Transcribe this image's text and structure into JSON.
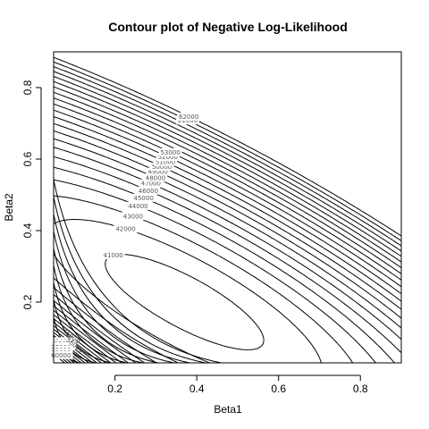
{
  "chart_data": {
    "type": "contour",
    "title": "Contour plot of Negative Log-Likelihood",
    "xlabel": "Beta1",
    "ylabel": "Beta2",
    "xlim": [
      0.05,
      0.9
    ],
    "ylim": [
      0.03,
      0.9
    ],
    "x_ticks": [
      0.2,
      0.4,
      0.6,
      0.8
    ],
    "x_tick_labels": [
      "0.2",
      "0.4",
      "0.6",
      "0.8"
    ],
    "y_ticks": [
      0.2,
      0.4,
      0.6,
      0.8
    ],
    "y_tick_labels": [
      "0.2",
      "0.4",
      "0.6",
      "0.8"
    ],
    "minimum": {
      "beta1": 0.37,
      "beta2": 0.2
    },
    "levels": [
      41000,
      42000,
      43000,
      44000,
      45000,
      46000,
      47000,
      48000,
      49000,
      50000,
      51000,
      52000,
      53000,
      54000,
      55000,
      56000,
      57000,
      58000,
      59000,
      60000,
      61000,
      62000
    ],
    "labeled_levels": [
      {
        "value": 41000,
        "text": "41000"
      },
      {
        "value": 42000,
        "text": "42000"
      },
      {
        "value": 43000,
        "text": "43000"
      },
      {
        "value": 44000,
        "text": "44000"
      },
      {
        "value": 45000,
        "text": "45000"
      },
      {
        "value": 46000,
        "text": "46000"
      },
      {
        "value": 47000,
        "text": "47000"
      },
      {
        "value": 48000,
        "text": "48000"
      },
      {
        "value": 49000,
        "text": "49000"
      },
      {
        "value": 50000,
        "text": "50000"
      },
      {
        "value": 51000,
        "text": "51000"
      },
      {
        "value": 52000,
        "text": "52000"
      },
      {
        "value": 53000,
        "text": "53000"
      },
      {
        "value": 54000,
        "text": "54000"
      },
      {
        "value": 55000,
        "text": "55000"
      },
      {
        "value": 56000,
        "text": "56000"
      },
      {
        "value": 57000,
        "text": "57000"
      },
      {
        "value": 58000,
        "text": "58000"
      },
      {
        "value": 59000,
        "text": "59000"
      },
      {
        "value": 60000,
        "text": "60000"
      },
      {
        "value": 61000,
        "text": "61000"
      },
      {
        "value": 62000,
        "text": "62000"
      }
    ],
    "corner_labels": [
      {
        "text": "46000"
      },
      {
        "text": "56000"
      }
    ],
    "grid": false,
    "legend": "none"
  }
}
